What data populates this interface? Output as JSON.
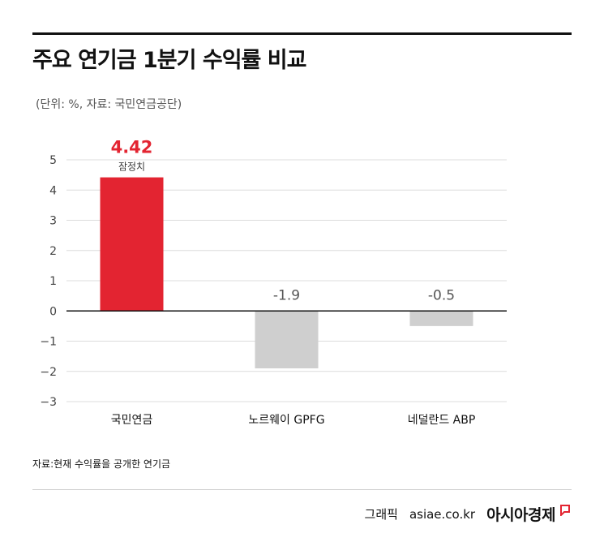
{
  "header": {
    "title": "주요 연기금 1분기 수익률 비교",
    "unit_note": "(단위: %, 자료: 국민연금공단)"
  },
  "chart_data": {
    "type": "bar",
    "categories": [
      "국민연금",
      "노르웨이 GPFG",
      "네덜란드 ABP"
    ],
    "values": [
      4.42,
      -1.9,
      -0.5
    ],
    "value_labels": [
      "4.42",
      "-1.9",
      "-0.5"
    ],
    "annotations": [
      {
        "category": "국민연금",
        "text": "잠정치"
      }
    ],
    "bar_colors": [
      "#e32431",
      "#cfcfcf",
      "#cfcfcf"
    ],
    "highlight_label_color": "#e32431",
    "ylim": [
      -3,
      5
    ],
    "yticks": [
      5,
      4,
      3,
      2,
      1,
      0,
      -1,
      -2,
      -3
    ],
    "ytick_labels": [
      "5",
      "4",
      "3",
      "2",
      "1",
      "0",
      "−1",
      "−2",
      "−3"
    ],
    "grid": true,
    "xlabel": "",
    "ylabel": ""
  },
  "footer": {
    "source": "자료:현재 수익률을 공개한 연기금",
    "credit": "그래픽",
    "site": "asiae.co.kr",
    "brand": "아시아경제",
    "brand_color": "#e32431"
  }
}
